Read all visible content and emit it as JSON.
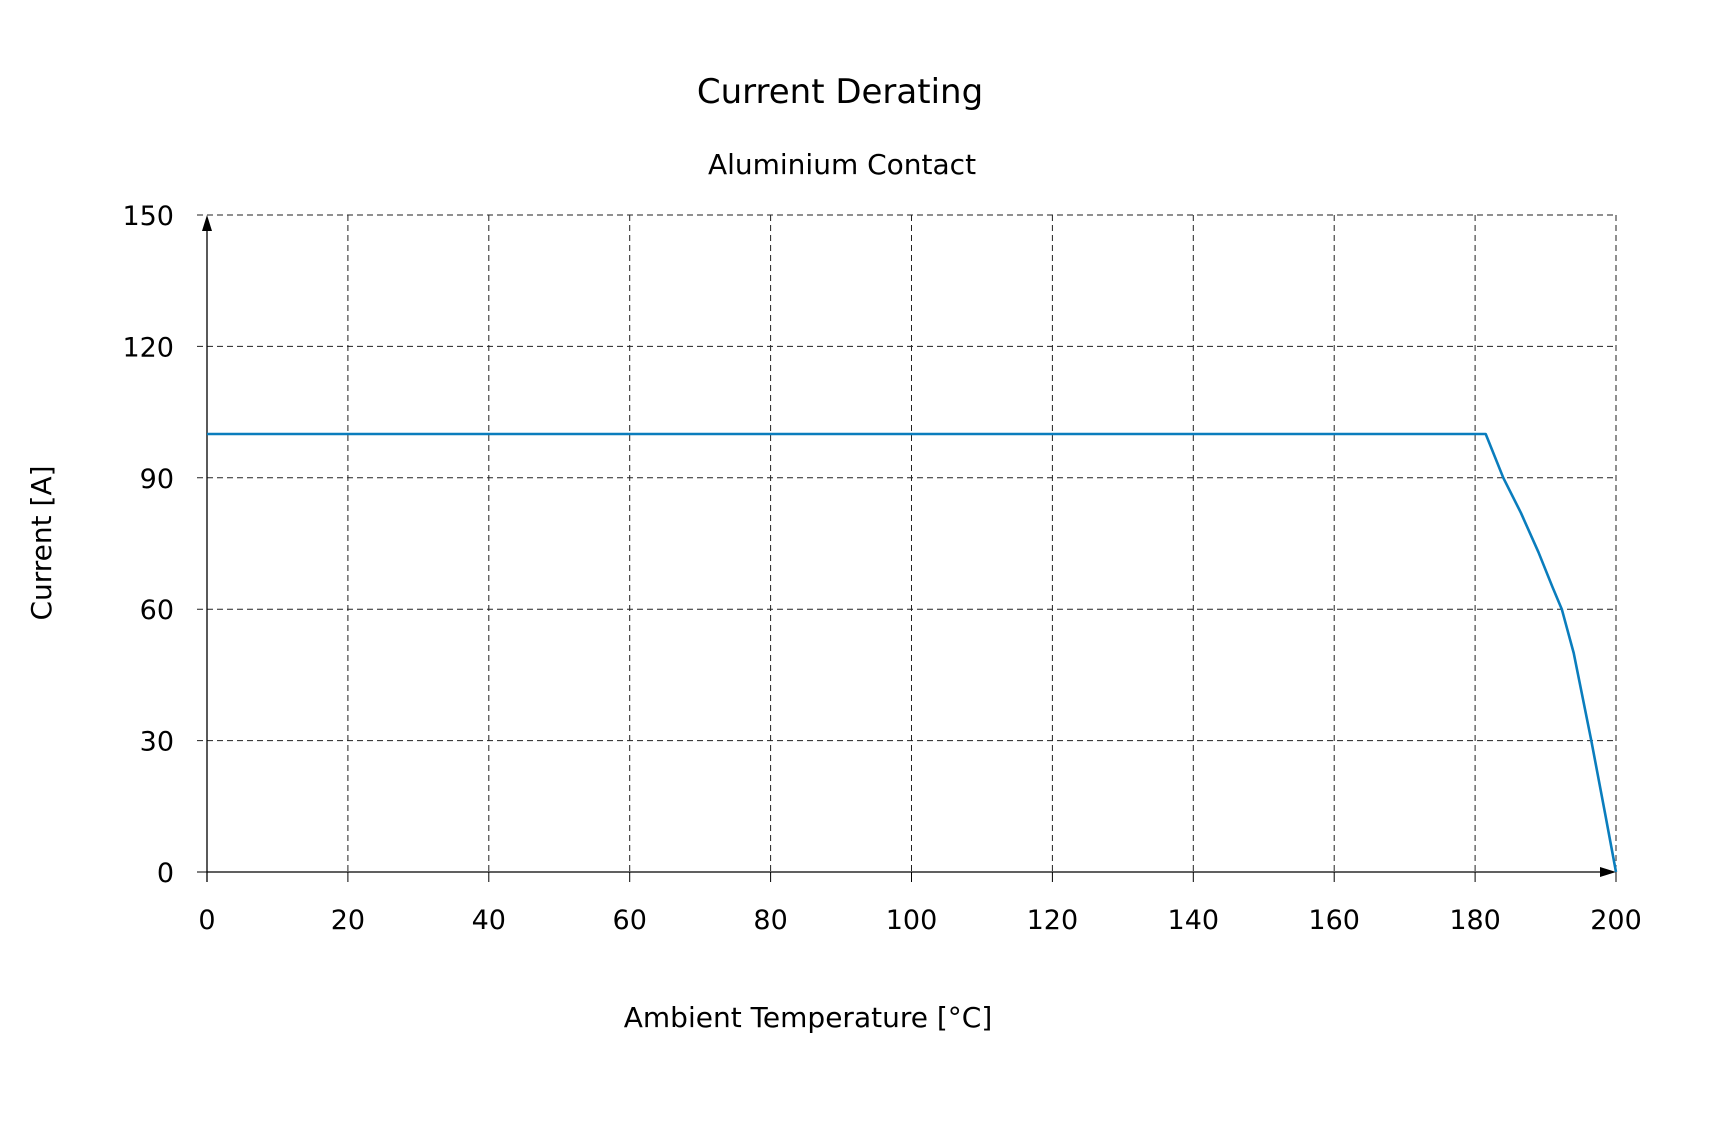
{
  "chart_data": {
    "type": "line",
    "title": "Current Derating",
    "subtitle": "Aluminium Contact",
    "xlabel": "Ambient Temperature [°C]",
    "ylabel": "Current [A]",
    "xlim": [
      0,
      200
    ],
    "ylim": [
      0,
      150
    ],
    "xticks": [
      "0",
      "20",
      "40",
      "60",
      "80",
      "100",
      "120",
      "140",
      "160",
      "180",
      "200"
    ],
    "yticks": [
      "0",
      "30",
      "60",
      "90",
      "120",
      "150"
    ],
    "grid": true,
    "series": [
      {
        "name": "Aluminium Contact",
        "color": "#0a7dbd",
        "x": [
          0,
          181.5,
          184,
          186.5,
          189,
          191,
          192.3,
          194,
          196.5,
          198.5,
          200
        ],
        "y": [
          100,
          100,
          90,
          82,
          73,
          65,
          60,
          50,
          30,
          13,
          0
        ]
      }
    ]
  }
}
